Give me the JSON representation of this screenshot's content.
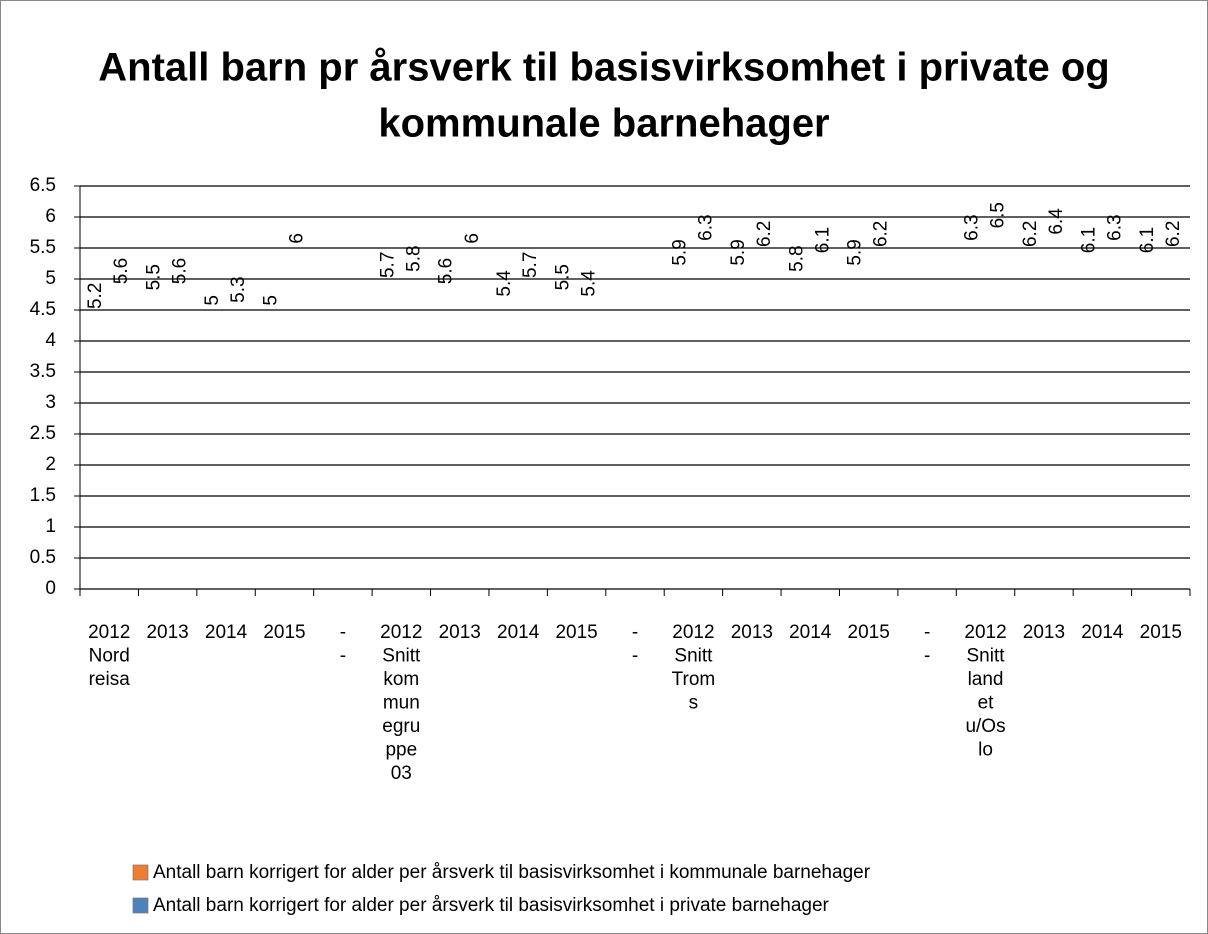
{
  "chart_data": {
    "type": "bar",
    "title": [
      "Antall barn pr årsverk til basisvirksomhet i private og",
      "kommunale barnehager"
    ],
    "categories": [
      [
        "2012",
        "Nord",
        "reisa"
      ],
      [
        "2013"
      ],
      [
        "2014"
      ],
      [
        "2015"
      ],
      [
        "-",
        "-"
      ],
      [
        "2012",
        "Snitt",
        "kom",
        "mun",
        "egru",
        "ppe",
        "03"
      ],
      [
        "2013"
      ],
      [
        "2014"
      ],
      [
        "2015"
      ],
      [
        "-",
        "-"
      ],
      [
        "2012",
        "Snitt",
        "Trom",
        "s"
      ],
      [
        "2013"
      ],
      [
        "2014"
      ],
      [
        "2015"
      ],
      [
        "-",
        "-"
      ],
      [
        "2012",
        "Snitt",
        "land",
        "et",
        "u/Os",
        "lo"
      ],
      [
        "2013"
      ],
      [
        "2014"
      ],
      [
        "2015"
      ]
    ],
    "series": [
      {
        "name": "Antall barn korrigert for alder per årsverk til basisvirksomhet i kommunale barnehager",
        "color": "#ED7D31",
        "values": [
          5.2,
          5.5,
          5,
          5,
          null,
          5.7,
          5.6,
          5.4,
          5.5,
          null,
          5.9,
          5.9,
          5.8,
          5.9,
          null,
          6.3,
          6.2,
          6.1,
          6.1
        ]
      },
      {
        "name": "Antall barn korrigert for alder per årsverk til basisvirksomhet i private barnehager",
        "color": "#4F81BD",
        "values": [
          5.6,
          5.6,
          5.3,
          6,
          null,
          5.8,
          6,
          5.7,
          5.4,
          null,
          6.3,
          6.2,
          6.1,
          6.2,
          null,
          6.5,
          6.4,
          6.3,
          6.2
        ]
      }
    ],
    "ylim": [
      0,
      6.5
    ],
    "yticks": [
      0,
      0.5,
      1,
      1.5,
      2,
      2.5,
      3,
      3.5,
      4,
      4.5,
      5,
      5.5,
      6,
      6.5
    ],
    "grid": true
  }
}
